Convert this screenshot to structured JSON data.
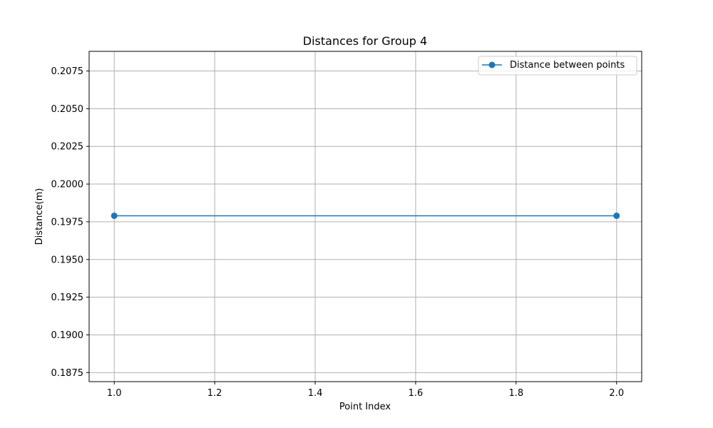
{
  "chart_data": {
    "type": "line",
    "title": "Distances for Group 4",
    "xlabel": "Point Index",
    "ylabel": "Distance(m)",
    "xlim": [
      0.95,
      2.05
    ],
    "ylim": [
      0.1869,
      0.2088
    ],
    "x_ticks": [
      1.0,
      1.2,
      1.4,
      1.6,
      1.8,
      2.0
    ],
    "x_tick_labels": [
      "1.0",
      "1.2",
      "1.4",
      "1.6",
      "1.8",
      "2.0"
    ],
    "y_ticks": [
      0.1875,
      0.19,
      0.1925,
      0.195,
      0.1975,
      0.2,
      0.2025,
      0.205,
      0.2075
    ],
    "y_tick_labels": [
      "0.1875",
      "0.1900",
      "0.1925",
      "0.1950",
      "0.1975",
      "0.2000",
      "0.2025",
      "0.2050",
      "0.2075"
    ],
    "grid": true,
    "legend_position": "top-right",
    "series": [
      {
        "name": "Distance between points",
        "color": "#1f77b4",
        "marker": "circle",
        "x": [
          1.0,
          2.0
        ],
        "y": [
          0.1979,
          0.1979
        ]
      }
    ]
  }
}
